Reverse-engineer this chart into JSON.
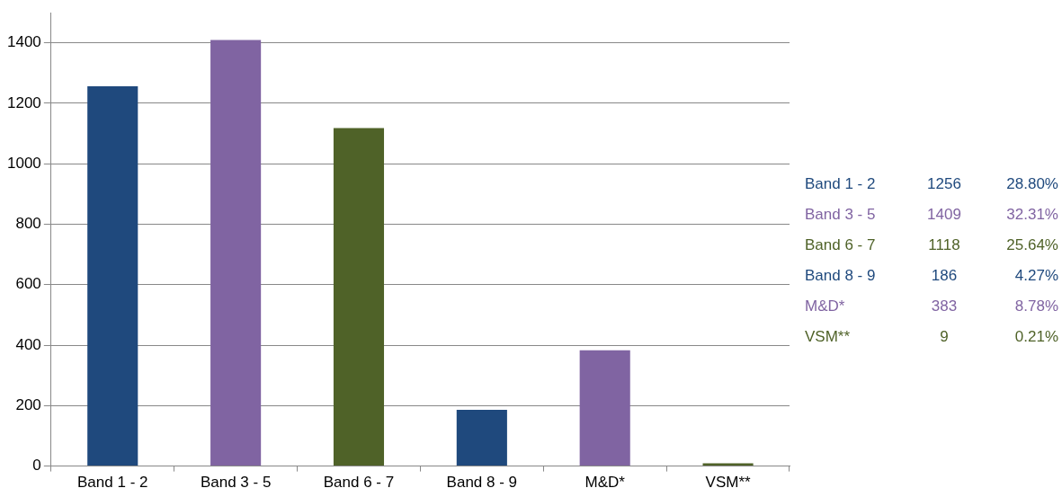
{
  "chart_data": [
    {
      "type": "bar",
      "categories": [
        "Band 1 - 2",
        "Band 3 - 5",
        "Band 6 - 7",
        "Band 8 - 9",
        "M&D*",
        "VSM**"
      ],
      "values": [
        1256,
        1409,
        1118,
        186,
        383,
        9
      ],
      "colors": [
        "#1f497d",
        "#8064a2",
        "#4f6228",
        "#1f497d",
        "#8064a2",
        "#4f6228"
      ],
      "ylim": [
        0,
        1500
      ],
      "yticks": [
        0,
        200,
        400,
        600,
        800,
        1000,
        1200,
        1400
      ],
      "grid": "y",
      "legend": false
    },
    {
      "type": "other",
      "annotations": [
        "Band 1 - 2",
        "1256",
        "28.80%",
        "Band 3 - 5",
        "1409",
        "32.31%",
        "Band 6 - 7",
        "1118",
        "25.64%",
        "Band 8 - 9",
        "186",
        "4.27%",
        "M&D*",
        "383",
        "8.78%",
        "VSM**",
        "9",
        "0.21%"
      ]
    }
  ]
}
